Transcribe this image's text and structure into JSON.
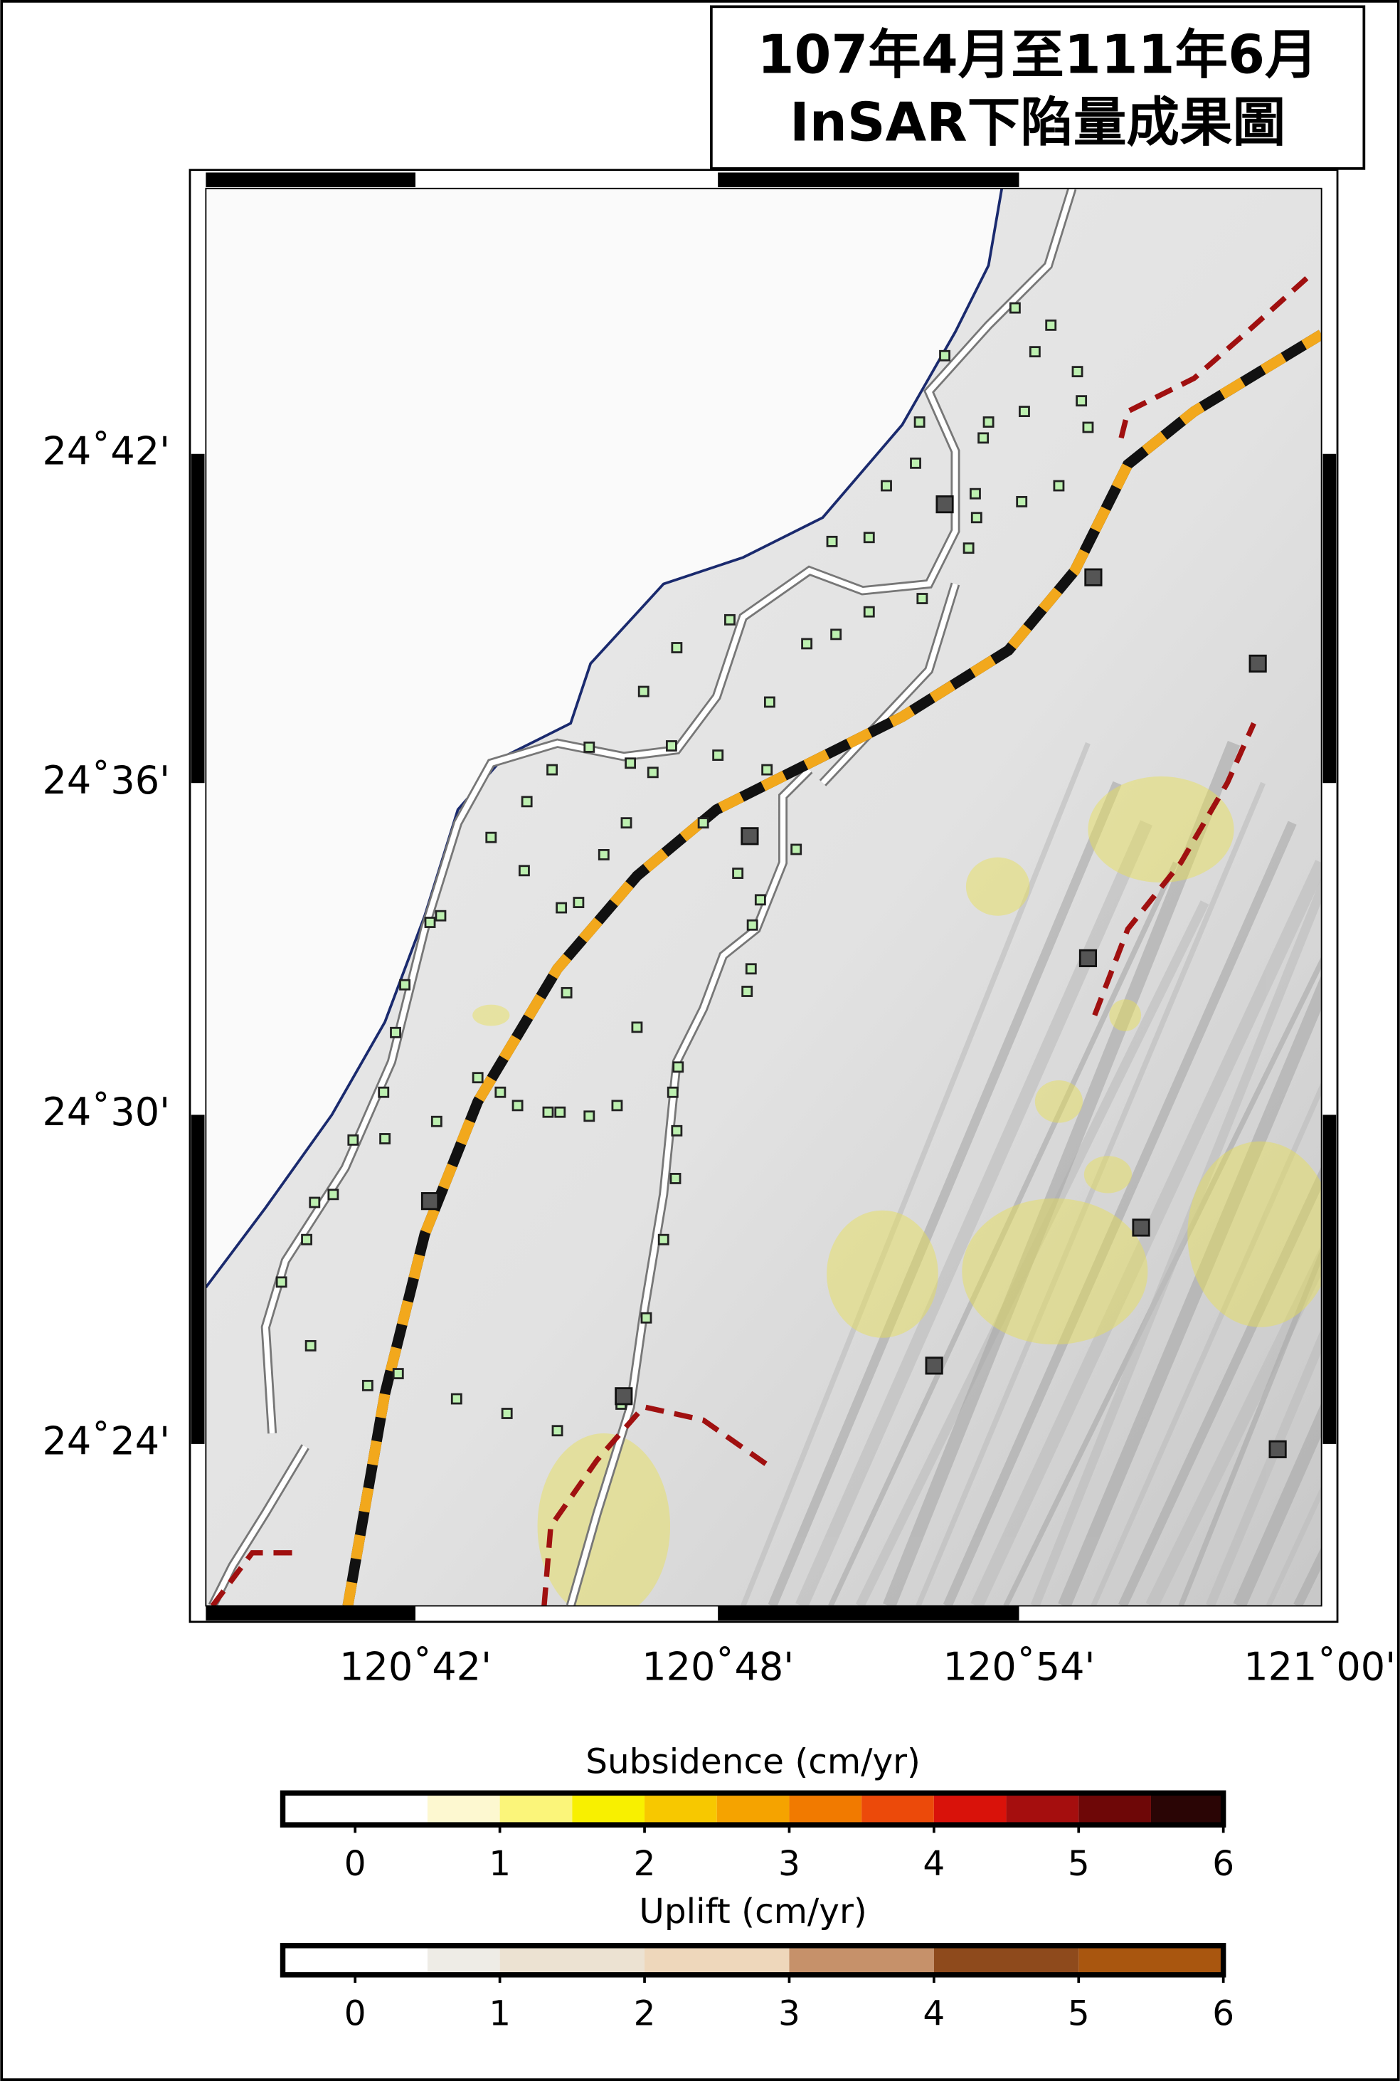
{
  "header": {
    "title": [
      "107年4月至111年6月",
      "InSAR下陷量成果圖"
    ]
  },
  "map": {
    "lat_labels": [
      "24˚42'",
      "24˚36'",
      "24˚30'",
      "24˚24'"
    ],
    "lon_labels": [
      "120˚42'",
      "120˚48'",
      "120˚54'",
      "121˚00'"
    ]
  },
  "legend": [
    {
      "title": "Subsidence (cm/yr)",
      "range": [
        -0.5,
        6
      ],
      "ticks": [
        0,
        1,
        2,
        3,
        4,
        5,
        6
      ],
      "bounds": [
        -0.5,
        0.5,
        1,
        1.5,
        2,
        2.5,
        3,
        3.5,
        4,
        4.5,
        5,
        5.5,
        6
      ],
      "colors": [
        "#ffffff",
        "#fdf8d0",
        "#fbf57a",
        "#f8f000",
        "#f7c800",
        "#f5a300",
        "#f17a00",
        "#ec4a0a",
        "#d9120a",
        "#a50e0e",
        "#6e0707",
        "#2a0505"
      ]
    },
    {
      "title": "Uplift (cm/yr)",
      "range": [
        -0.5,
        6
      ],
      "ticks": [
        0,
        1,
        2,
        3,
        4,
        5,
        6
      ],
      "bounds": [
        -0.5,
        0.5,
        1,
        2,
        3,
        4,
        5,
        6
      ],
      "colors": [
        "#ffffff",
        "#eeece6",
        "#ece2d2",
        "#eed7bb",
        "#c6916a",
        "#8e4a1c",
        "#a9560f"
      ]
    }
  ]
}
